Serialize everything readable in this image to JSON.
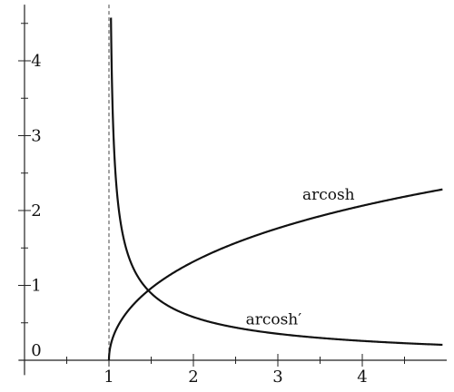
{
  "chart_data": {
    "type": "line",
    "title": "",
    "xlabel": "",
    "ylabel": "",
    "xlim": [
      -0.05,
      5.0
    ],
    "ylim": [
      -0.15,
      4.75
    ],
    "grid": false,
    "x_ticks_minor": [
      0.5,
      1.5,
      2.5,
      3.5,
      4.5
    ],
    "x_ticks_major": [
      1,
      2,
      3,
      4
    ],
    "x_tick_labels": [
      "1",
      "2",
      "3",
      "4"
    ],
    "y_ticks_minor": [
      0.5,
      1.5,
      2.5,
      3.5,
      4.5
    ],
    "y_ticks_major": [
      1,
      2,
      3,
      4
    ],
    "y_tick_labels": [
      "1",
      "2",
      "3",
      "4"
    ],
    "origin_label": "0",
    "asymptote": {
      "x": 1,
      "style": "dashed"
    },
    "series": [
      {
        "name": "arcosh",
        "function": "arcosh(x)",
        "x": [
          1,
          1.01,
          1.05,
          1.1,
          1.2,
          1.3,
          1.5,
          1.75,
          2,
          2.5,
          3,
          3.5,
          4,
          4.5,
          4.95
        ],
        "values": [
          0,
          0.141,
          0.315,
          0.444,
          0.622,
          0.756,
          0.962,
          1.159,
          1.317,
          1.567,
          1.763,
          1.925,
          2.063,
          2.185,
          2.283
        ],
        "label": "arcosh"
      },
      {
        "name": "arcosh′",
        "function": "1/sqrt(x^2-1)",
        "x": [
          1.0236,
          1.03,
          1.05,
          1.1,
          1.2,
          1.3,
          1.5,
          1.75,
          2,
          2.5,
          3,
          3.5,
          4,
          4.5,
          4.95
        ],
        "values": [
          4.75,
          4.18,
          3.12,
          2.18,
          1.508,
          1.204,
          0.894,
          0.696,
          0.577,
          0.436,
          0.354,
          0.298,
          0.258,
          0.228,
          0.206
        ],
        "label": "arcosh′"
      }
    ],
    "colors": {
      "curve": "#111111",
      "axis": "#222222",
      "asymptote": "#444444"
    }
  }
}
